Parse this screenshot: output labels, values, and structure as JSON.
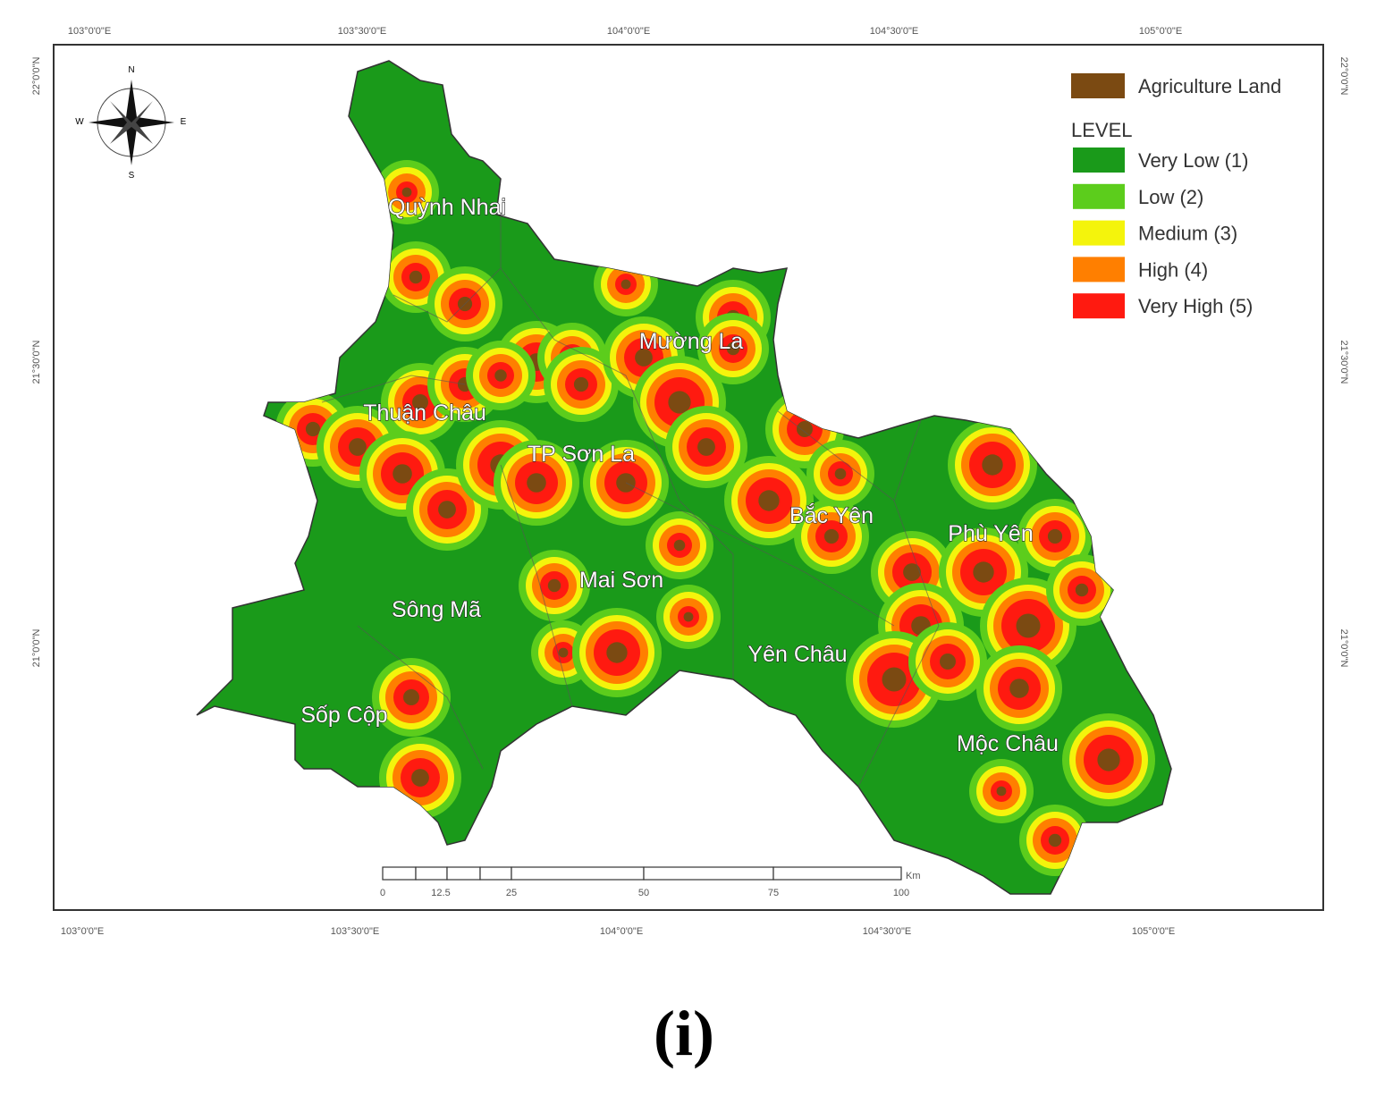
{
  "map": {
    "top_labels": [
      "103°0'0\"E",
      "103°30'0\"E",
      "104°0'0\"E",
      "104°30'0\"E",
      "105°0'0\"E"
    ],
    "bottom_labels": [
      "103°0'0\"E",
      "103°30'0\"E",
      "104°0'0\"E",
      "104°30'0\"E",
      "105°0'0\"E"
    ],
    "left_labels": [
      "22°0'0\"N",
      "21°30'0\"N",
      "21°0'0\"N"
    ],
    "right_labels": [
      "22°0'0\"N",
      "21°30'0\"N",
      "21°0'0\"N"
    ],
    "compass": [
      "N",
      "E",
      "S",
      "W"
    ],
    "districts": [
      "Quỳnh Nhai",
      "Mường La",
      "Thuận Châu",
      "TP Sơn La",
      "Bắc Yên",
      "Phù Yên",
      "Mai Sơn",
      "Sông Mã",
      "Yên Châu",
      "Sốp Cộp",
      "Mộc Châu"
    ],
    "legend": {
      "land": {
        "label": "Agriculture Land",
        "color": "#7b4a12"
      },
      "title": "LEVEL",
      "levels": [
        {
          "label": "Very Low (1)",
          "color": "#1a9a1a"
        },
        {
          "label": "Low (2)",
          "color": "#5ccd1c"
        },
        {
          "label": "Medium (3)",
          "color": "#f4f40c"
        },
        {
          "label": "High (4)",
          "color": "#ff7f00"
        },
        {
          "label": "Very High (5)",
          "color": "#ff1a10"
        }
      ]
    },
    "scale": {
      "ticks": [
        "0",
        "12.5",
        "25",
        "50",
        "75",
        "100"
      ],
      "unit": "Km"
    }
  },
  "caption": "(i)"
}
